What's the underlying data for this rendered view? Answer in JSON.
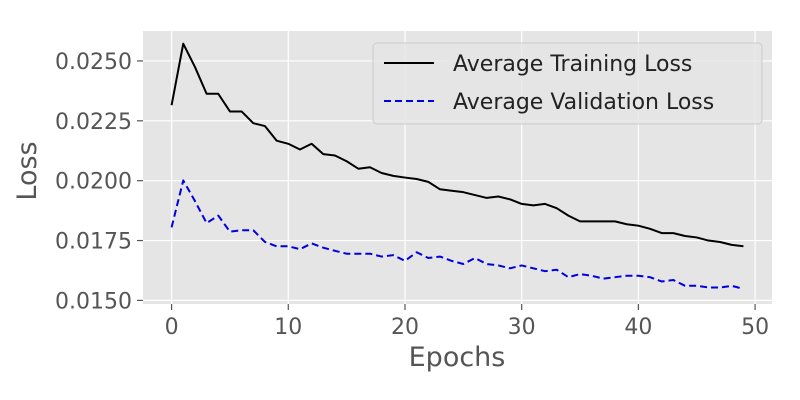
{
  "chart_data": {
    "type": "line",
    "title": "",
    "xlabel": "Epochs",
    "ylabel": "Loss",
    "xlim": [
      -2.45,
      51.45
    ],
    "ylim": [
      0.01485,
      0.02625
    ],
    "xticks": [
      0,
      10,
      20,
      30,
      40,
      50
    ],
    "xtick_labels": [
      "0",
      "10",
      "20",
      "30",
      "40",
      "50"
    ],
    "yticks": [
      0.015,
      0.0175,
      0.02,
      0.0225,
      0.025
    ],
    "ytick_labels": [
      "0.0150",
      "0.0175",
      "0.0200",
      "0.0225",
      "0.0250"
    ],
    "grid": true,
    "legend_position": "top-right",
    "x": [
      0,
      1,
      2,
      3,
      4,
      5,
      6,
      7,
      8,
      9,
      10,
      11,
      12,
      13,
      14,
      15,
      16,
      17,
      18,
      19,
      20,
      21,
      22,
      23,
      24,
      25,
      26,
      27,
      28,
      29,
      30,
      31,
      32,
      33,
      34,
      35,
      36,
      37,
      38,
      39,
      40,
      41,
      42,
      43,
      44,
      45,
      46,
      47,
      48,
      49
    ],
    "series": [
      {
        "name": "Average Training Loss",
        "color": "#000000",
        "style": "solid",
        "values": [
          0.02315,
          0.02572,
          0.02475,
          0.02363,
          0.02363,
          0.02289,
          0.02289,
          0.0224,
          0.02228,
          0.02167,
          0.02154,
          0.0213,
          0.02154,
          0.02111,
          0.02105,
          0.02081,
          0.0205,
          0.02056,
          0.02032,
          0.0202,
          0.02013,
          0.02007,
          0.01995,
          0.01964,
          0.01958,
          0.01952,
          0.0194,
          0.01928,
          0.01934,
          0.01922,
          0.01903,
          0.01897,
          0.01903,
          0.01885,
          0.01854,
          0.0183,
          0.0183,
          0.0183,
          0.0183,
          0.01818,
          0.01812,
          0.01799,
          0.01781,
          0.01781,
          0.01769,
          0.01763,
          0.0175,
          0.01744,
          0.01732,
          0.01726
        ]
      },
      {
        "name": "Average Validation Loss",
        "color": "#0000dd",
        "style": "dashed",
        "values": [
          0.01805,
          0.02001,
          0.01915,
          0.01823,
          0.01854,
          0.01787,
          0.01793,
          0.01793,
          0.01744,
          0.01726,
          0.01726,
          0.01714,
          0.01738,
          0.0172,
          0.01707,
          0.01695,
          0.01695,
          0.01695,
          0.01683,
          0.01689,
          0.01665,
          0.01701,
          0.01677,
          0.01683,
          0.01665,
          0.01652,
          0.01677,
          0.01652,
          0.01646,
          0.01634,
          0.01646,
          0.01634,
          0.01622,
          0.01628,
          0.01597,
          0.0161,
          0.01603,
          0.01591,
          0.01597,
          0.01603,
          0.01603,
          0.01597,
          0.01579,
          0.01585,
          0.01561,
          0.01561,
          0.01554,
          0.01554,
          0.01561,
          0.01548
        ]
      }
    ]
  }
}
